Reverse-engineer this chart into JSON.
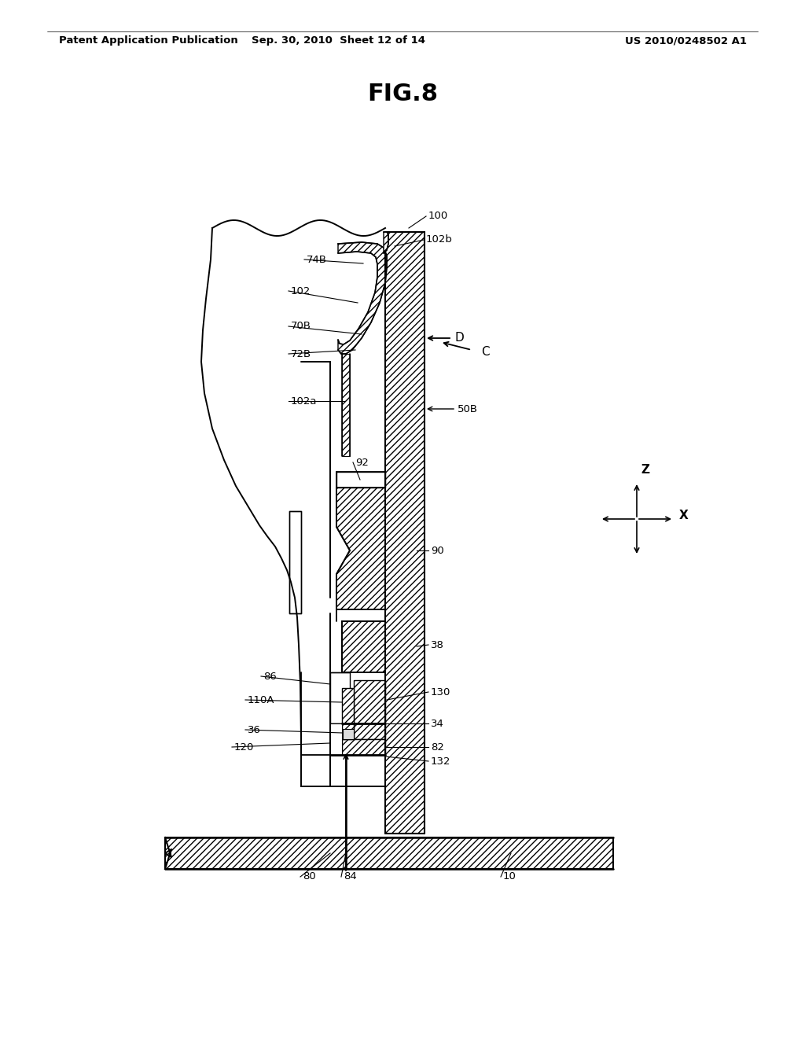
{
  "bg_color": "#ffffff",
  "header_left": "Patent Application Publication",
  "header_mid": "Sep. 30, 2010  Sheet 12 of 14",
  "header_right": "US 2010/0248502 A1",
  "fig_title": "FIG.8"
}
